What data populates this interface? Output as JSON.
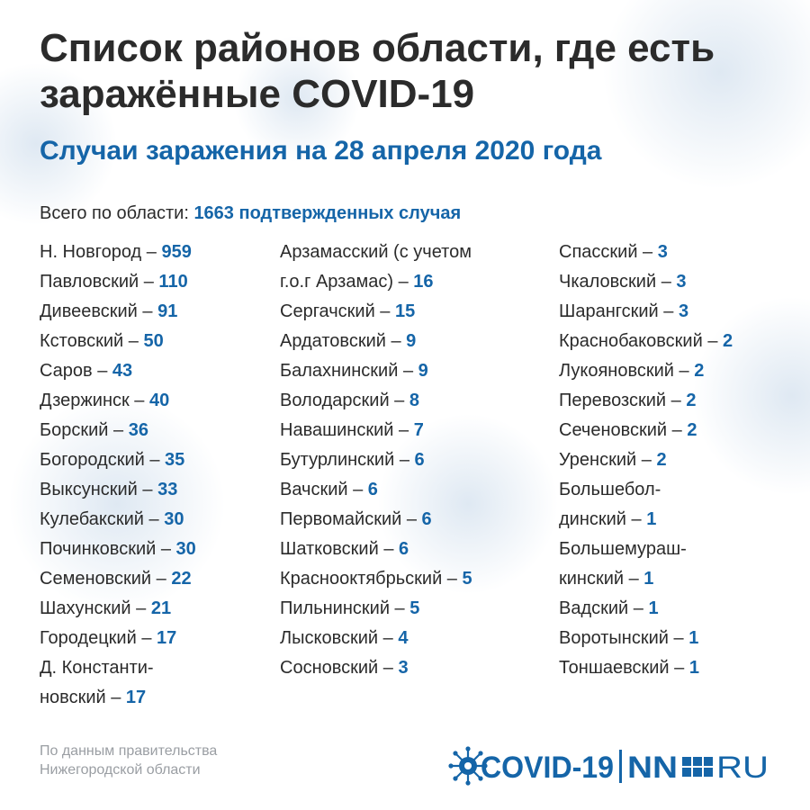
{
  "title": "Список районов области, где есть заражённые COVID-19",
  "subtitle": "Случаи заражения на 28 апреля 2020 года",
  "total": {
    "label": "Всего по области:",
    "value": "1663 подтвержденных случая"
  },
  "columns": [
    [
      {
        "text": "Н. Новгород – ",
        "num": "959"
      },
      {
        "text": "Павловский – ",
        "num": "110"
      },
      {
        "text": "Дивеевский – ",
        "num": "91"
      },
      {
        "text": "Кстовский – ",
        "num": "50"
      },
      {
        "text": "Саров – ",
        "num": "43"
      },
      {
        "text": "Дзержинск – ",
        "num": "40"
      },
      {
        "text": "Борский – ",
        "num": "36"
      },
      {
        "text": "Богородский – ",
        "num": "35"
      },
      {
        "text": "Выксунский – ",
        "num": "33"
      },
      {
        "text": "Кулебакский – ",
        "num": "30"
      },
      {
        "text": "Починковский – ",
        "num": "30"
      },
      {
        "text": "Семеновский – ",
        "num": "22"
      },
      {
        "text": "Шахунский – ",
        "num": "21"
      },
      {
        "text": "Городецкий – ",
        "num": "17"
      },
      {
        "lead": "Д. Константи-",
        "text": "новский – ",
        "num": "17"
      }
    ],
    [
      {
        "lead": "Арзамасский (с учетом",
        "text": "г.о.г Арзамас) – ",
        "num": "16"
      },
      {
        "text": "Сергачский – ",
        "num": "15"
      },
      {
        "text": "Ардатовский – ",
        "num": "9"
      },
      {
        "text": "Балахнинский – ",
        "num": "9"
      },
      {
        "text": "Володарский – ",
        "num": "8"
      },
      {
        "text": "Навашинский – ",
        "num": "7"
      },
      {
        "text": "Бутурлинский – ",
        "num": "6"
      },
      {
        "text": "Вачский – ",
        "num": "6"
      },
      {
        "text": "Первомайский – ",
        "num": "6"
      },
      {
        "text": "Шатковский – ",
        "num": "6"
      },
      {
        "text": "Краснооктябрьский – ",
        "num": "5"
      },
      {
        "text": "Пильнинский – ",
        "num": "5"
      },
      {
        "text": "Лысковский – ",
        "num": "4"
      },
      {
        "text": "Сосновский – ",
        "num": "3"
      }
    ],
    [
      {
        "text": "Спасский – ",
        "num": "3"
      },
      {
        "text": "Чкаловский – ",
        "num": "3"
      },
      {
        "text": "Шарангский – ",
        "num": "3"
      },
      {
        "text": "Краснобаковский – ",
        "num": "2"
      },
      {
        "text": "Лукояновский – ",
        "num": "2"
      },
      {
        "text": "Перевозский – ",
        "num": "2"
      },
      {
        "text": "Сеченовский – ",
        "num": "2"
      },
      {
        "text": "Уренский – ",
        "num": "2"
      },
      {
        "lead": "Большебол-",
        "text": "динский – ",
        "num": "1"
      },
      {
        "lead": "Большемураш-",
        "text": "кинский – ",
        "num": "1"
      },
      {
        "text": "Вадский – ",
        "num": "1"
      },
      {
        "text": "Воротынский – ",
        "num": "1"
      },
      {
        "text": "Тоншаевский – ",
        "num": "1"
      }
    ]
  ],
  "source": {
    "line1": "По данным правительства",
    "line2": "Нижегородской области"
  },
  "logo": {
    "covid_text": "COVID-19",
    "nn_text": "NN",
    "ru_text": "RU"
  },
  "colors": {
    "accent": "#1565a8",
    "text": "#2b2b2b",
    "muted": "#9a9ea3"
  }
}
